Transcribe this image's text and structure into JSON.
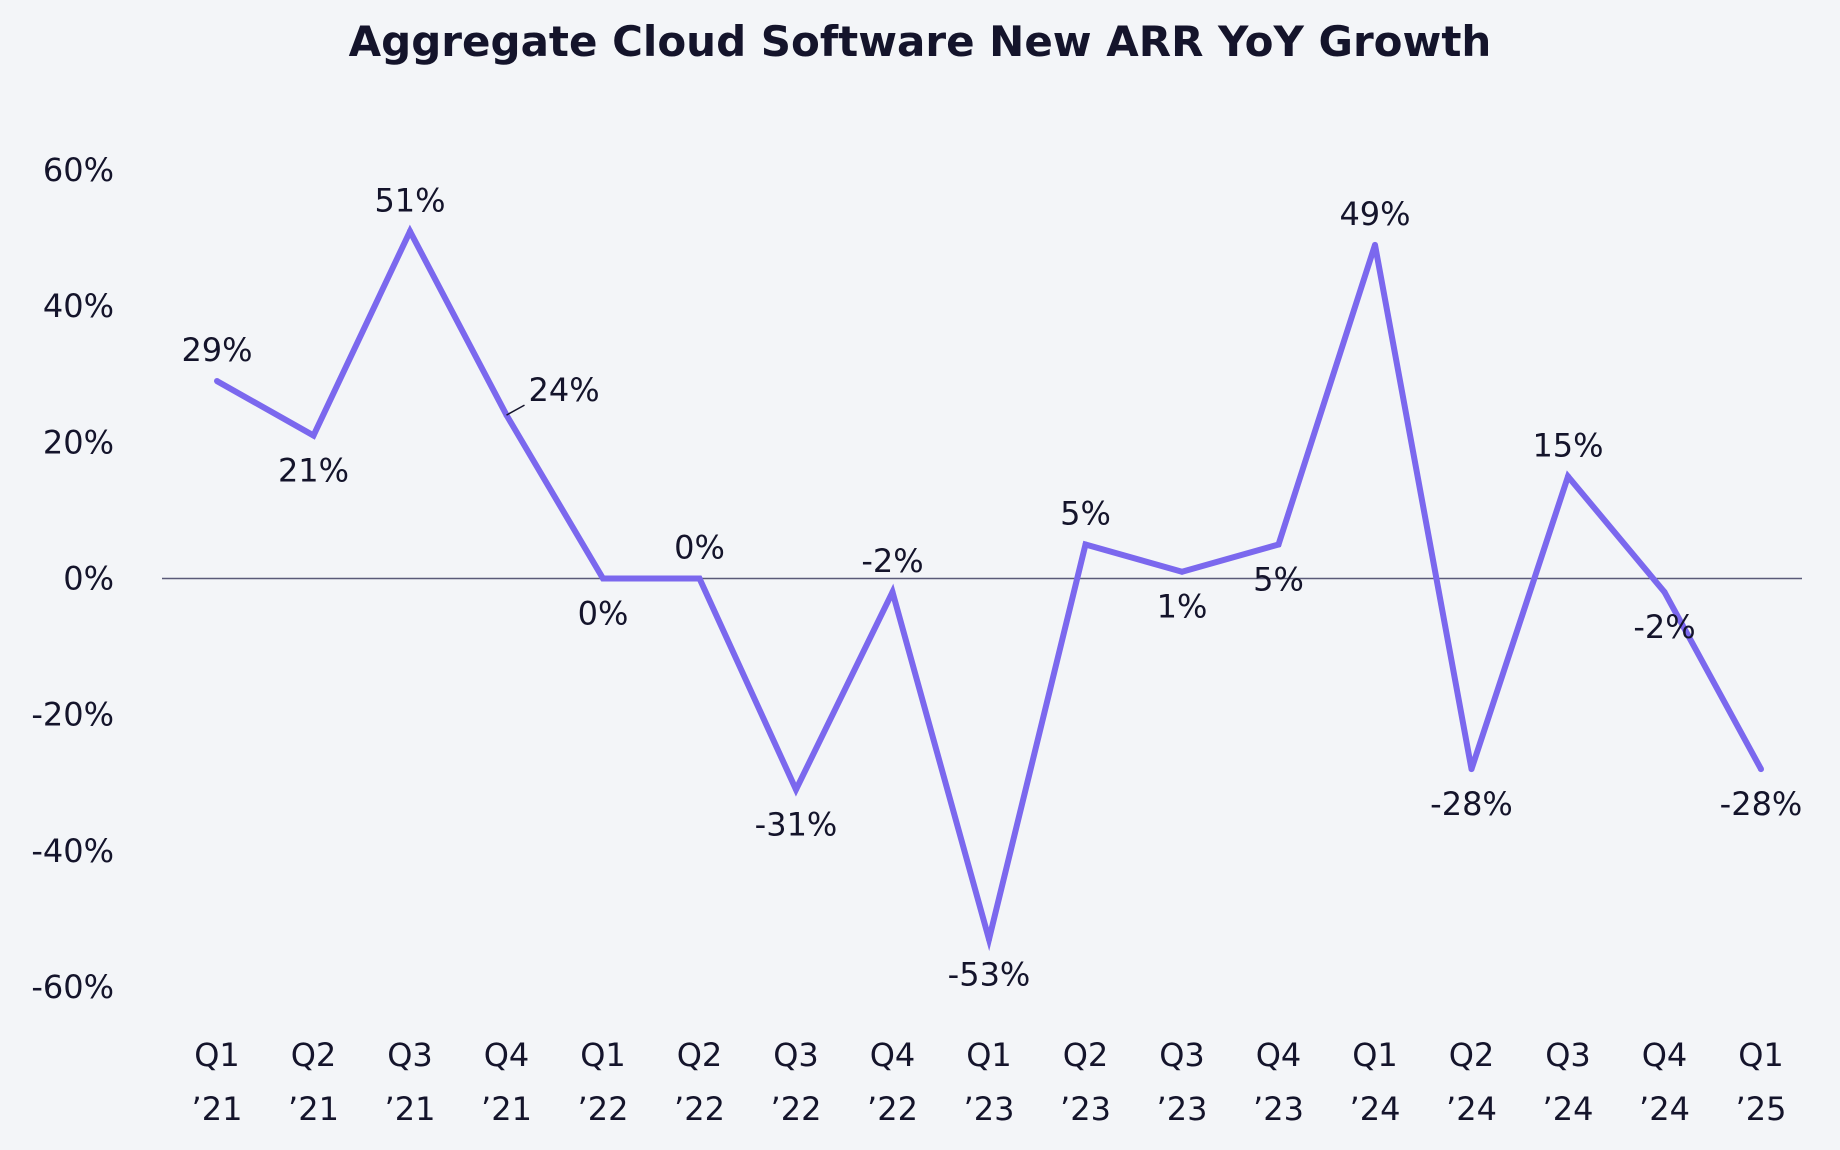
{
  "chart_data": {
    "type": "line",
    "title": "Aggregate Cloud Software New ARR YoY Growth",
    "xlabel": "",
    "ylabel": "",
    "ylim": [
      -60,
      60
    ],
    "yticks": [
      60,
      40,
      20,
      0,
      -20,
      -40,
      -60
    ],
    "ytick_labels": [
      "60%",
      "40%",
      "20%",
      "0%",
      "-20%",
      "-40%",
      "-60%"
    ],
    "categories": [
      [
        "Q1",
        "’21"
      ],
      [
        "Q2",
        "’21"
      ],
      [
        "Q3",
        "’21"
      ],
      [
        "Q4",
        "’21"
      ],
      [
        "Q1",
        "’22"
      ],
      [
        "Q2",
        "’22"
      ],
      [
        "Q3",
        "’22"
      ],
      [
        "Q4",
        "’22"
      ],
      [
        "Q1",
        "’23"
      ],
      [
        "Q2",
        "’23"
      ],
      [
        "Q3",
        "’23"
      ],
      [
        "Q4",
        "’23"
      ],
      [
        "Q1",
        "’24"
      ],
      [
        "Q2",
        "’24"
      ],
      [
        "Q3",
        "’24"
      ],
      [
        "Q4",
        "’24"
      ],
      [
        "Q1",
        "’25"
      ]
    ],
    "values": [
      29,
      21,
      51,
      24,
      0,
      0,
      -31,
      -2,
      -53,
      5,
      1,
      5,
      49,
      -28,
      15,
      -2,
      -28
    ],
    "data_labels": [
      "29%",
      "21%",
      "51%",
      "24%",
      "0%",
      "0%",
      "-31%",
      "-2%",
      "-53%",
      "5%",
      "1%",
      "5%",
      "49%",
      "-28%",
      "15%",
      "-2%",
      "-28%"
    ],
    "line_color": "#7b68ee",
    "zero_line_color": "#5a5a78",
    "grid": false,
    "legend": "none"
  }
}
